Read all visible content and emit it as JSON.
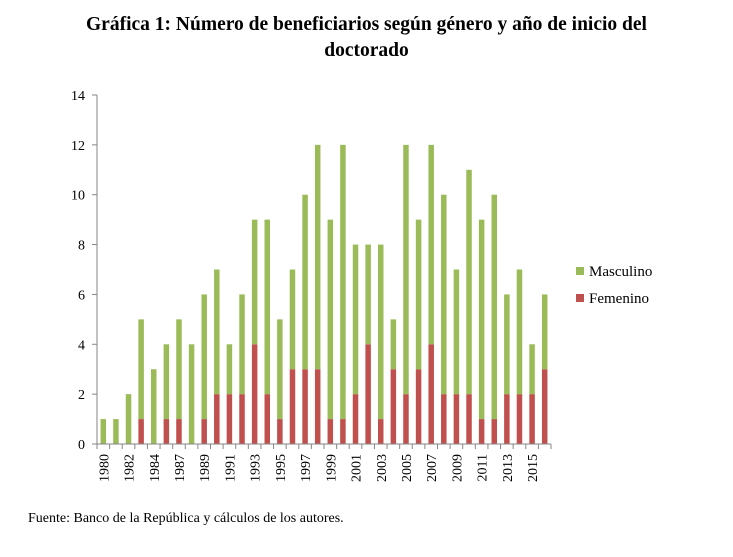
{
  "title_line1": "Gráfica 1: Número de beneficiarios según género y año de inicio del",
  "title_line2": "doctorado",
  "source": "Fuente: Banco de la República y cálculos de los autores.",
  "colors": {
    "masculino": "#9BBB59",
    "femenino": "#C0504D",
    "axis": "#868686"
  },
  "chart_data": {
    "type": "bar",
    "stacked": true,
    "title": "Gráfica 1: Número de beneficiarios según género y año de inicio del doctorado",
    "xlabel": "",
    "ylabel": "",
    "ylim": [
      0,
      14
    ],
    "yticks": [
      0,
      2,
      4,
      6,
      8,
      10,
      12,
      14
    ],
    "legend_position": "right",
    "categories": [
      "1980",
      "1981",
      "1982",
      "1983",
      "1984",
      "1985",
      "1987",
      "1988",
      "1989",
      "1990",
      "1991",
      "1992",
      "1993",
      "1994",
      "1995",
      "1996",
      "1997",
      "1998",
      "1999",
      "2000",
      "2001",
      "2002",
      "2003",
      "2004",
      "2005",
      "2006",
      "2007",
      "2008",
      "2009",
      "2010",
      "2011",
      "2012",
      "2013",
      "2014",
      "2015",
      "2016"
    ],
    "tick_labels": [
      "1980",
      "",
      "1982",
      "",
      "1984",
      "",
      "1987",
      "",
      "1989",
      "",
      "1991",
      "",
      "1993",
      "",
      "1995",
      "",
      "1997",
      "",
      "1999",
      "",
      "2001",
      "",
      "2003",
      "",
      "2005",
      "",
      "2007",
      "",
      "2009",
      "",
      "2011",
      "",
      "2013",
      "",
      "2015",
      ""
    ],
    "series": [
      {
        "name": "Femenino",
        "color": "#C0504D",
        "values": [
          0,
          0,
          0,
          1,
          0,
          1,
          1,
          0,
          1,
          2,
          2,
          2,
          4,
          2,
          1,
          3,
          3,
          3,
          1,
          1,
          2,
          4,
          1,
          3,
          2,
          3,
          4,
          2,
          2,
          2,
          1,
          1,
          2,
          2,
          2,
          3
        ]
      },
      {
        "name": "Masculino",
        "color": "#9BBB59",
        "values": [
          1,
          1,
          2,
          4,
          3,
          3,
          4,
          4,
          5,
          5,
          2,
          4,
          5,
          7,
          4,
          4,
          7,
          9,
          8,
          11,
          6,
          4,
          7,
          2,
          10,
          6,
          8,
          8,
          5,
          9,
          8,
          9,
          4,
          5,
          2,
          3
        ]
      }
    ],
    "legend": [
      "Masculino",
      "Femenino"
    ]
  }
}
